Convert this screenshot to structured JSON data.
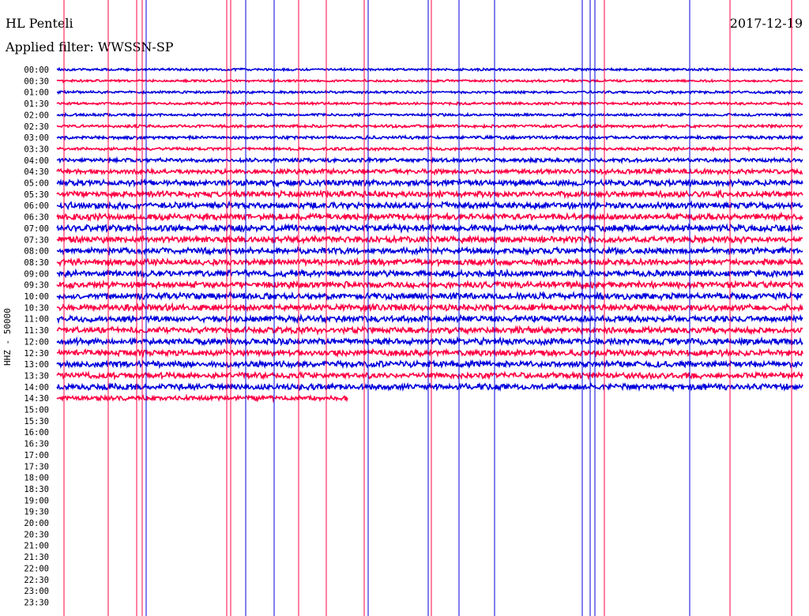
{
  "header": {
    "station": "HL Penteli",
    "filter": "Applied filter: WWSSN-SP",
    "date": "2017-12-19"
  },
  "chart_data": {
    "type": "line",
    "ylabel": "HHZ - 50000",
    "tick_labels": [
      "00:00",
      "00:30",
      "01:00",
      "01:30",
      "02:00",
      "02:30",
      "03:00",
      "03:30",
      "04:00",
      "04:30",
      "05:00",
      "05:30",
      "06:00",
      "06:30",
      "07:00",
      "07:30",
      "08:00",
      "08:30",
      "09:00",
      "09:30",
      "10:00",
      "10:30",
      "11:00",
      "11:30",
      "12:00",
      "12:30",
      "13:00",
      "13:30",
      "14:00",
      "14:30",
      "15:00",
      "15:30",
      "16:00",
      "16:30",
      "17:00",
      "17:30",
      "18:00",
      "18:30",
      "19:00",
      "19:30",
      "20:00",
      "20:30",
      "21:00",
      "21:30",
      "22:00",
      "22:30",
      "23:00",
      "23:30"
    ],
    "tick_display": [
      "00:00",
      "00:30",
      "01:00",
      "01:30",
      "02:00",
      "02:30",
      "03:00",
      "03:30",
      "04:00",
      "04:30",
      "05:00",
      "05:30",
      "06:00",
      "06:30",
      "07:00",
      "07:30",
      "08:00",
      "08:30",
      "09:00",
      "09:30",
      "10:00",
      "10:30",
      "11:00",
      "11:30",
      "12:00",
      "12:30",
      "13:00",
      "13:30",
      "14:00",
      "14:30",
      "15:00",
      "15:30",
      "16:00",
      "16:30",
      "17:00",
      "17:30",
      "18:00",
      "18:30",
      "19:00",
      "19:30",
      "20:00",
      "20:30",
      "21:00",
      "21:30",
      "22:00",
      "22:30",
      "23:00",
      "23:30"
    ],
    "colors": {
      "even": "#0000dd",
      "odd": "#ff0044"
    },
    "recorded_until": "14:30",
    "last_trace_fraction": 0.39,
    "trace_noise": [
      1.2,
      1.2,
      1.3,
      1.3,
      1.3,
      1.5,
      1.6,
      1.5,
      2.0,
      2.4,
      3.0,
      3.0,
      3.2,
      3.2,
      3.3,
      3.2,
      3.1,
      3.0,
      3.1,
      3.2,
      3.3,
      3.2,
      3.2,
      3.1,
      3.2,
      3.1,
      3.1,
      3.0,
      3.1,
      2.5
    ],
    "spikes": [
      {
        "x": 81,
        "color": "odd"
      },
      {
        "x": 137,
        "color": "odd"
      },
      {
        "x": 173,
        "color": "odd"
      },
      {
        "x": 180,
        "color": "odd"
      },
      {
        "x": 185,
        "color": "even"
      },
      {
        "x": 287,
        "color": "odd"
      },
      {
        "x": 292,
        "color": "odd"
      },
      {
        "x": 311,
        "color": "even"
      },
      {
        "x": 347,
        "color": "even"
      },
      {
        "x": 378,
        "color": "odd"
      },
      {
        "x": 413,
        "color": "odd"
      },
      {
        "x": 461,
        "color": "odd"
      },
      {
        "x": 466,
        "color": "even"
      },
      {
        "x": 542,
        "color": "even"
      },
      {
        "x": 546,
        "color": "odd"
      },
      {
        "x": 581,
        "color": "even"
      },
      {
        "x": 626,
        "color": "even"
      },
      {
        "x": 737,
        "color": "even"
      },
      {
        "x": 747,
        "color": "even"
      },
      {
        "x": 753,
        "color": "even"
      },
      {
        "x": 765,
        "color": "odd"
      },
      {
        "x": 873,
        "color": "even"
      },
      {
        "x": 924,
        "color": "odd"
      },
      {
        "x": 1002,
        "color": "odd"
      }
    ]
  }
}
